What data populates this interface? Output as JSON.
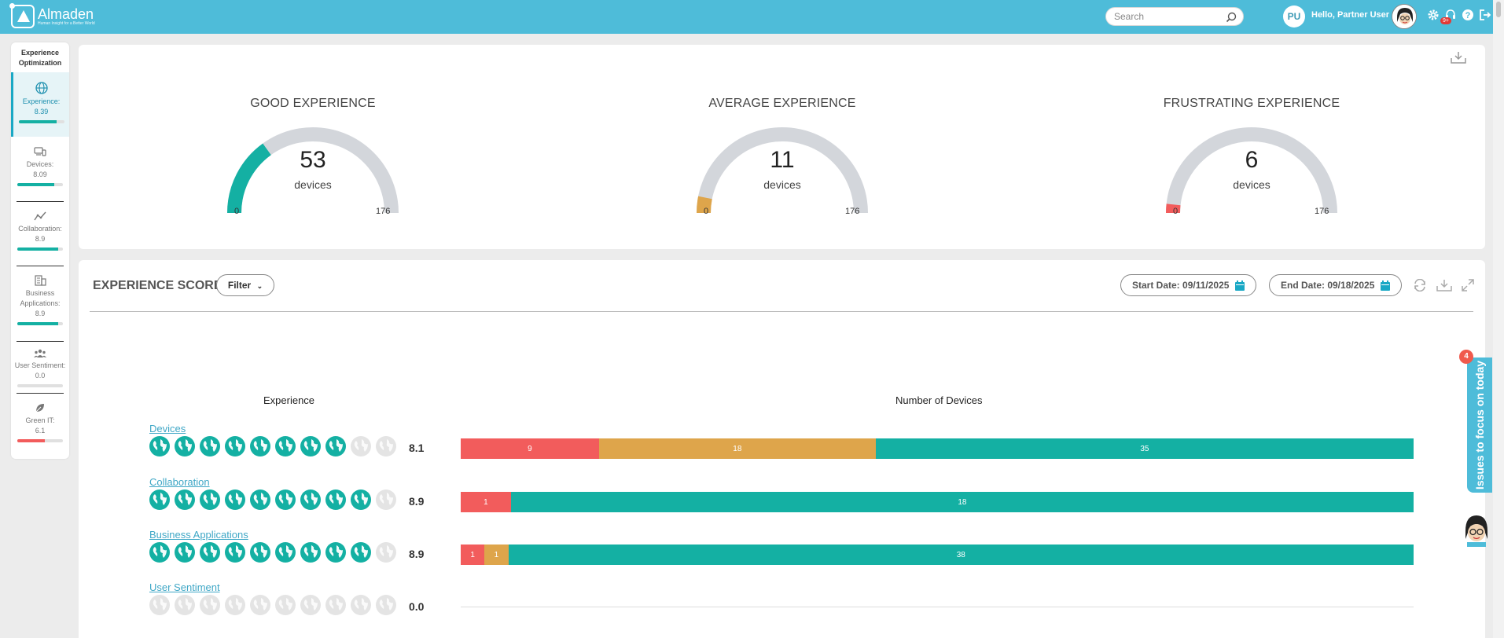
{
  "app": {
    "name": "Almaden",
    "tagline": "Human Insight for a Better World"
  },
  "topbar": {
    "search_placeholder": "Search",
    "user_initials": "PU",
    "greeting": "Hello, Partner User",
    "notification_count": "9+"
  },
  "sidebar": {
    "header": "Experience Optimization",
    "items": [
      {
        "label": "Experience:",
        "value": "8.39",
        "progress": 0.839,
        "icon": "globe-icon"
      },
      {
        "label": "Devices:",
        "value": "8.09",
        "progress": 0.809,
        "icon": "devices-icon"
      },
      {
        "label": "Collaboration:",
        "value": "8.9",
        "progress": 0.89,
        "icon": "collaboration-icon"
      },
      {
        "label": "Business Applications:",
        "value": "8.9",
        "progress": 0.89,
        "icon": "building-icon"
      },
      {
        "label": "User Sentiment:",
        "value": "0.0",
        "progress": 0.0,
        "icon": "users-icon"
      },
      {
        "label": "Green IT:",
        "value": "6.1",
        "progress": 0.61,
        "icon": "leaf-icon"
      }
    ]
  },
  "gauges": [
    {
      "title": "GOOD EXPERIENCE",
      "value": "53",
      "unit": "devices",
      "min": "0",
      "max": "176",
      "color": "#14b0a3"
    },
    {
      "title": "AVERAGE EXPERIENCE",
      "value": "11",
      "unit": "devices",
      "min": "0",
      "max": "176",
      "color": "#dea54b"
    },
    {
      "title": "FRUSTRATING EXPERIENCE",
      "value": "6",
      "unit": "devices",
      "min": "0",
      "max": "176",
      "color": "#f25c5c"
    }
  ],
  "score": {
    "title": "EXPERIENCE SCORE",
    "filter_label": "Filter",
    "start_date": "Start Date: 09/11/2025",
    "end_date": "End Date: 09/18/2025",
    "col_experience": "Experience",
    "col_devices": "Number of Devices",
    "rows": [
      {
        "name": "Devices",
        "score": "8.1",
        "filled": 8.1,
        "segments": [
          {
            "value": 9,
            "color": "#f25c5c"
          },
          {
            "value": 18,
            "color": "#dea54b"
          },
          {
            "value": 35,
            "color": "#14b0a3"
          }
        ]
      },
      {
        "name": "Collaboration",
        "score": "8.9",
        "filled": 9,
        "segments": [
          {
            "value": 1,
            "color": "#f25c5c"
          },
          {
            "value": 18,
            "color": "#14b0a3"
          }
        ]
      },
      {
        "name": "Business Applications",
        "score": "8.9",
        "filled": 9,
        "segments": [
          {
            "value": 1,
            "color": "#f25c5c"
          },
          {
            "value": 1,
            "color": "#dea54b"
          },
          {
            "value": 38,
            "color": "#14b0a3"
          }
        ]
      },
      {
        "name": "User Sentiment",
        "score": "0.0",
        "filled": 0,
        "segments": []
      }
    ]
  },
  "issues": {
    "label": "Issues to focus on today",
    "count": "4"
  },
  "colors": {
    "accent": "#4ebcd9",
    "good": "#14b0a3",
    "average": "#dea54b",
    "bad": "#f25c5c"
  }
}
